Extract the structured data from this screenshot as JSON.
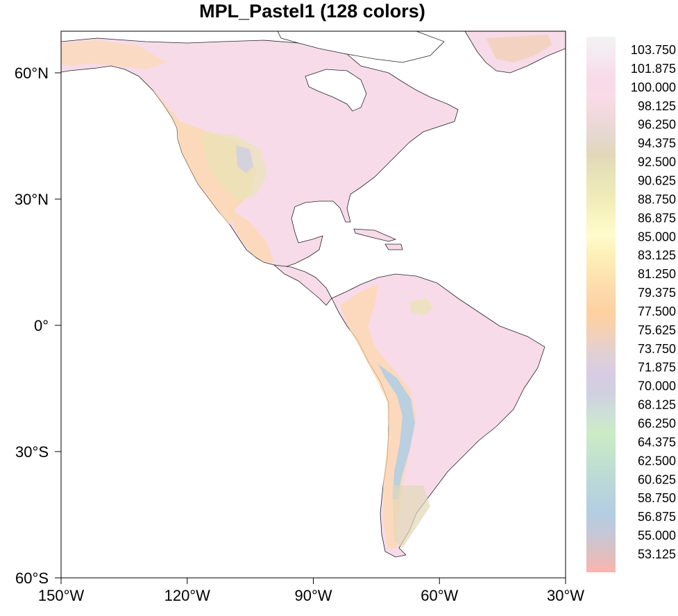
{
  "title": "MPL_Pastel1 (128 colors)",
  "map": {
    "x_axis_labels": [
      "150°W",
      "120°W",
      "90°W",
      "60°W",
      "30°W"
    ],
    "y_axis_labels": [
      "60°N",
      "30°N",
      "0°",
      "30°S",
      "60°S"
    ],
    "lon_range": [
      -150,
      -30
    ],
    "lat_range": [
      -60,
      70
    ]
  },
  "colorbar": {
    "labels": [
      "103.750",
      "101.875",
      "100.000",
      "98.125",
      "96.250",
      "94.375",
      "92.500",
      "90.625",
      "88.750",
      "86.875",
      "85.000",
      "83.125",
      "81.250",
      "79.375",
      "77.500",
      "75.625",
      "73.750",
      "71.875",
      "70.000",
      "68.125",
      "66.250",
      "64.375",
      "62.500",
      "60.625",
      "58.750",
      "56.875",
      "55.000",
      "53.125"
    ],
    "colors": [
      "#f2f2f2",
      "#f5e8f0",
      "#f7dbe9",
      "#fadbe8",
      "#f0d9dc",
      "#e5d8d0",
      "#e2d8b8",
      "#e8e4b8",
      "#f0eab8",
      "#f7f4c0",
      "#fffccc",
      "#fef0b8",
      "#fde4b0",
      "#fdd8aa",
      "#fdd0a0",
      "#f2d0b8",
      "#e0d0d4",
      "#d8cce4",
      "#d0d0e0",
      "#cce0d8",
      "#ccebc5",
      "#c4e4cc",
      "#bcdcd4",
      "#b8d4dc",
      "#b3cde3",
      "#c4c8d8",
      "#dcc0c0",
      "#fbb4ae"
    ]
  },
  "colors": {
    "land_base": "#f7dbe9",
    "mountain": "#fdd8aa",
    "highland": "#e8e4b8",
    "andes": "#b3cde3"
  }
}
